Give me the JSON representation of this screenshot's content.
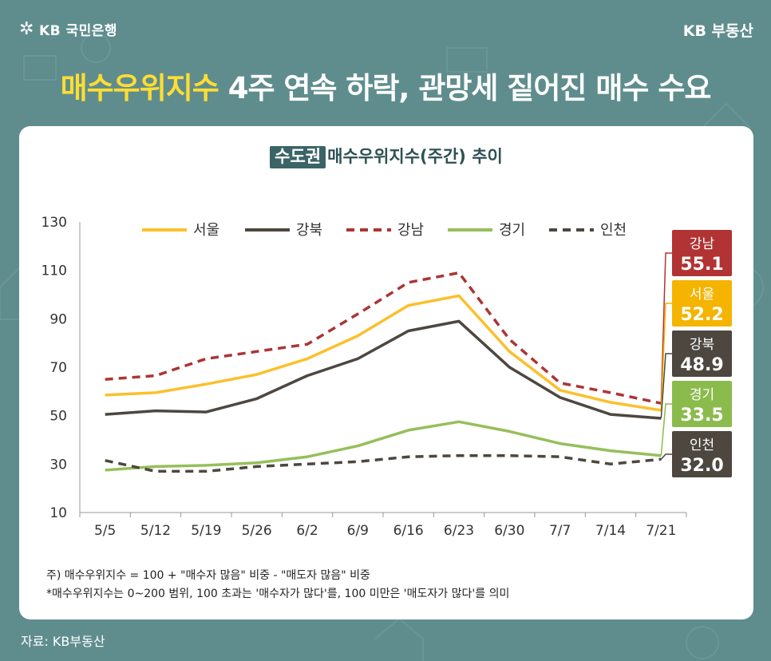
{
  "brand": {
    "bank_logo": "KB 국민은행",
    "logo_icon": "kb-star-icon",
    "corner": "KB 부동산"
  },
  "headline": {
    "highlight": "매수우위지수",
    "rest": " 4주 연속 하락, 관망세 짙어진 매수 수요"
  },
  "chart_data": {
    "type": "line",
    "title_tag": "수도권",
    "title_rest": "매수우위지수(주간) 추이",
    "categories": [
      "5/5",
      "5/12",
      "5/19",
      "5/26",
      "6/2",
      "6/9",
      "6/16",
      "6/23",
      "6/30",
      "7/7",
      "7/14",
      "7/21"
    ],
    "ylim": [
      10,
      130
    ],
    "yticks": [
      130,
      110,
      90,
      70,
      50,
      30,
      10
    ],
    "legend_position": "top",
    "series": [
      {
        "name": "서울",
        "color": "#fbc02d",
        "dash": false,
        "values": [
          58.5,
          59.5,
          63.0,
          67.0,
          73.5,
          83.0,
          95.5,
          99.5,
          76.5,
          60.5,
          55.5,
          52.2
        ],
        "end_label": "52.2",
        "label_bg": "#f4b400"
      },
      {
        "name": "강북",
        "color": "#4d4740",
        "dash": false,
        "values": [
          50.5,
          52.0,
          51.5,
          57.0,
          66.5,
          73.5,
          85.0,
          89.0,
          70.0,
          57.5,
          50.5,
          48.9
        ],
        "end_label": "48.9",
        "label_bg": "#4d4740"
      },
      {
        "name": "강남",
        "color": "#ad3434",
        "dash": true,
        "values": [
          65.0,
          66.5,
          73.5,
          76.5,
          79.5,
          92.0,
          105.0,
          109.0,
          81.5,
          63.5,
          59.5,
          55.1
        ],
        "end_label": "55.1",
        "label_bg": "#b23333"
      },
      {
        "name": "경기",
        "color": "#96bf5a",
        "dash": false,
        "values": [
          27.5,
          29.0,
          29.5,
          30.5,
          33.0,
          37.5,
          44.0,
          47.5,
          43.5,
          38.5,
          35.5,
          33.5
        ],
        "end_label": "33.5",
        "label_bg": "#8bbb4d"
      },
      {
        "name": "인천",
        "color": "#4d4740",
        "dash": true,
        "values": [
          31.5,
          27.0,
          27.0,
          29.0,
          30.0,
          31.0,
          33.0,
          33.5,
          33.5,
          33.0,
          30.0,
          32.0
        ],
        "end_label": "32.0",
        "label_bg": "#4d4740"
      }
    ],
    "callout_order": [
      "강남",
      "서울",
      "강북",
      "경기",
      "인천"
    ]
  },
  "notes": {
    "line1": "주) 매수우위지수 = 100 + \"매수자 많음\" 비중 - \"매도자 많음\" 비중",
    "line2": "*매수우위지수는 0~200 범위, 100 초과는 '매수자가 많다'를, 100 미만은 '매도자가 많다'를 의미"
  },
  "source": "자료: KB부동산"
}
